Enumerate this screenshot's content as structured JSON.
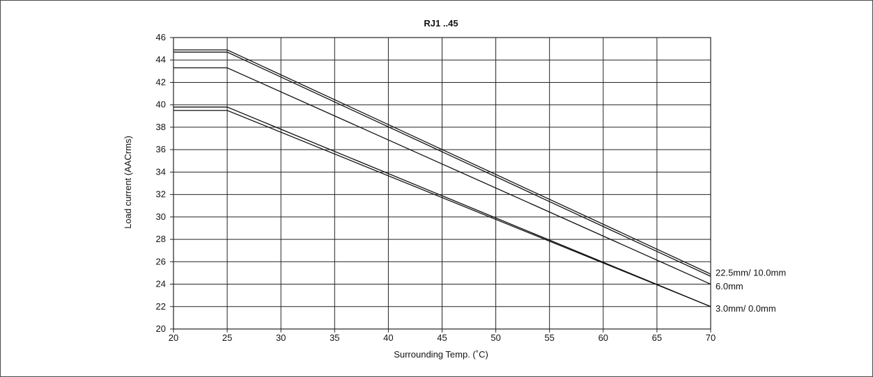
{
  "chart_data": {
    "type": "line",
    "title": "RJ1 ..45",
    "xlabel": "Surrounding Temp. (˚C)",
    "ylabel": "Load current (AACrms)",
    "xlim": [
      20,
      70
    ],
    "ylim": [
      20,
      46
    ],
    "xticks": [
      20,
      25,
      30,
      35,
      40,
      45,
      50,
      55,
      60,
      65,
      70
    ],
    "yticks": [
      20,
      22,
      24,
      26,
      28,
      30,
      32,
      34,
      36,
      38,
      40,
      42,
      44,
      46
    ],
    "grid": true,
    "series": [
      {
        "x": [
          20,
          25,
          70
        ],
        "y": [
          44.9,
          44.9,
          24.9
        ]
      },
      {
        "x": [
          20,
          25,
          70
        ],
        "y": [
          44.7,
          44.7,
          24.7
        ]
      },
      {
        "x": [
          20,
          25,
          70
        ],
        "y": [
          43.3,
          43.3,
          24.0
        ]
      },
      {
        "x": [
          20,
          25,
          70
        ],
        "y": [
          39.8,
          39.8,
          22.0
        ]
      },
      {
        "x": [
          20,
          25,
          70
        ],
        "y": [
          39.5,
          39.5,
          22.0
        ]
      }
    ],
    "annotations": [
      {
        "text": "22.5mm/ 10.0mm",
        "x": 70,
        "y": 25.0
      },
      {
        "text": "6.0mm",
        "x": 70,
        "y": 23.8
      },
      {
        "text": "3.0mm/ 0.0mm",
        "x": 70,
        "y": 21.8
      }
    ]
  }
}
